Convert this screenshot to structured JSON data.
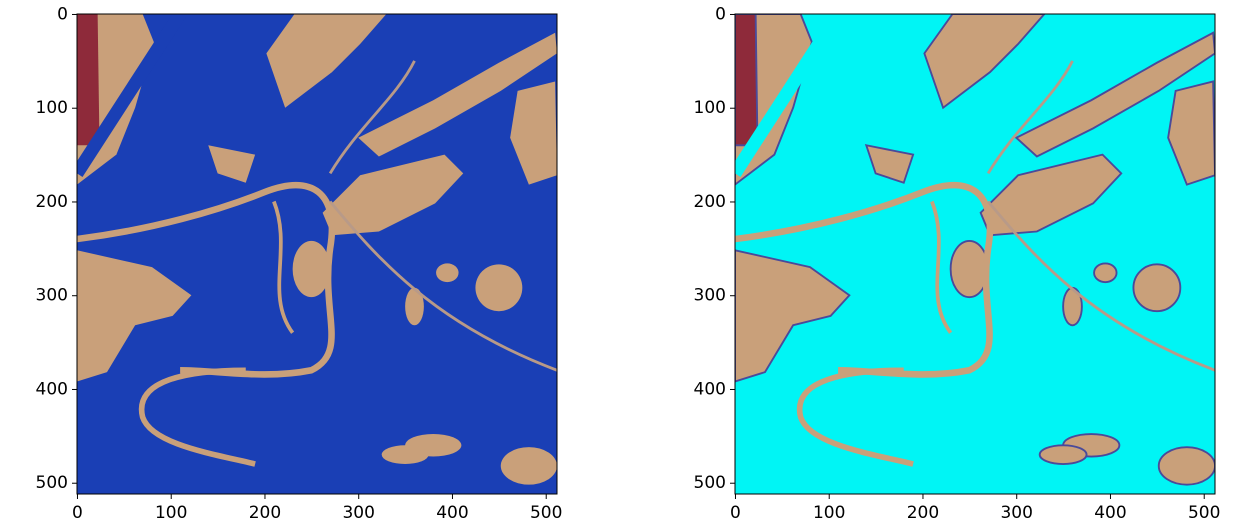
{
  "chart_data": [
    {
      "type": "image",
      "xlim": [
        -0.5,
        511.5
      ],
      "ylim": [
        511.5,
        -0.5
      ],
      "xticks": [
        0,
        100,
        200,
        300,
        400,
        500
      ],
      "yticks": [
        0,
        100,
        200,
        300,
        400,
        500
      ]
    },
    {
      "type": "image",
      "xlim": [
        -0.5,
        511.5
      ],
      "ylim": [
        511.5,
        -0.5
      ],
      "xticks": [
        0,
        100,
        200,
        300,
        400,
        500
      ],
      "yticks": [
        0,
        100,
        200,
        300,
        400,
        500
      ]
    }
  ]
}
